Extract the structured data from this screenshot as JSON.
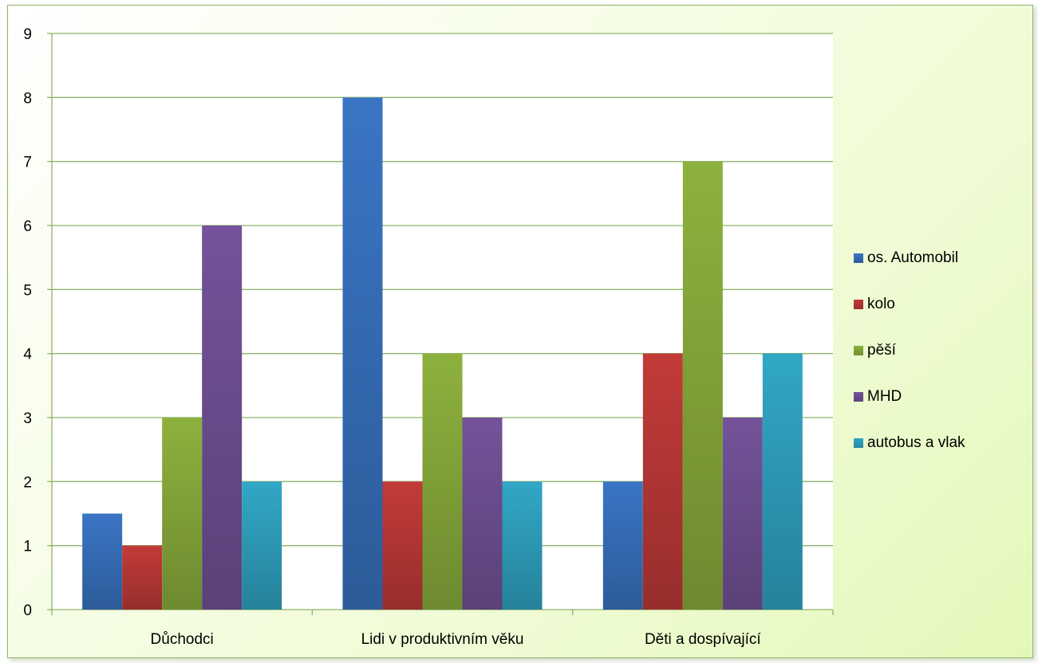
{
  "chart_data": {
    "type": "bar",
    "title": "",
    "xlabel": "",
    "ylabel": "",
    "categories": [
      "Důchodci",
      "Lidi v produktivním věku",
      "Děti a dospívající"
    ],
    "series": [
      {
        "name": "os. Automobil",
        "color": "#3a75c4",
        "values": [
          1.5,
          8,
          2
        ]
      },
      {
        "name": "kolo",
        "color": "#c23b38",
        "values": [
          1,
          2,
          4
        ]
      },
      {
        "name": "pěší",
        "color": "#8db13e",
        "values": [
          3,
          4,
          7
        ]
      },
      {
        "name": "MHD",
        "color": "#74539a",
        "values": [
          6,
          3,
          3
        ]
      },
      {
        "name": "autobus a vlak",
        "color": "#31a7c6",
        "values": [
          2,
          2,
          4
        ]
      }
    ],
    "ylim": [
      0,
      9
    ],
    "yticks": [
      0,
      1,
      2,
      3,
      4,
      5,
      6,
      7,
      8,
      9
    ],
    "grid": true,
    "legend_position": "right"
  }
}
